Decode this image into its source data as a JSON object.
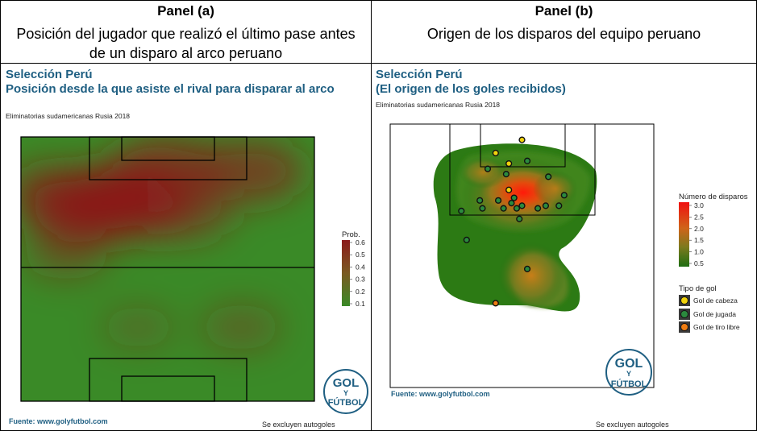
{
  "panel_a": {
    "header_label": "Panel (a)",
    "header_desc": "Posición del jugador que realizó el último pase antes de un disparo al arco peruano",
    "title_line1": "Selección Perú",
    "title_line2": "Posición desde la que asiste el rival para disparar al arco",
    "subtitle": "Eliminatorias sudamericanas Rusia 2018",
    "source": "Fuente: www.golyfutbol.com",
    "note": "Se excluyen autogoles"
  },
  "panel_b": {
    "header_label": "Panel (b)",
    "header_desc": "Origen de los disparos del equipo peruano",
    "title_line1": "Selección Perú",
    "title_line2": "(El origen de los goles recibidos)",
    "subtitle": "Eliminatorias sudamericanas Rusia 2018",
    "source": "Fuente: www.golyfutbol.com",
    "note": "Se excluyen autogoles"
  },
  "logo_text": {
    "top": "GOL",
    "middle": "Y",
    "bottom": "FÚTBOL"
  },
  "colors": {
    "title_blue": "#1f5f82",
    "pitch_green": "#3a8a27",
    "heat_red": "#8b1a1a",
    "density_dark": "#1e6e12",
    "density_red": "#f01010",
    "gol_cabeza": "#f1d30c",
    "gol_jugada": "#2b8a3e",
    "gol_tiro_libre": "#ef7d12"
  },
  "chart_data": [
    {
      "type": "heatmap",
      "legend_title": "Prob.",
      "legend_ticks": [
        "0.6",
        "0.5",
        "0.4",
        "0.3",
        "0.2",
        "0.1"
      ],
      "legend_range": [
        0.05,
        0.65
      ],
      "hotspots": [
        {
          "x": 0.35,
          "y": 0.24,
          "value": 0.62
        },
        {
          "x": 0.22,
          "y": 0.27,
          "value": 0.55
        },
        {
          "x": 0.5,
          "y": 0.12,
          "value": 0.45
        },
        {
          "x": 0.78,
          "y": 0.13,
          "value": 0.42
        },
        {
          "x": 0.55,
          "y": 0.28,
          "value": 0.35
        },
        {
          "x": 0.1,
          "y": 0.2,
          "value": 0.3
        },
        {
          "x": 0.15,
          "y": 0.45,
          "value": 0.2
        },
        {
          "x": 0.75,
          "y": 0.72,
          "value": 0.18
        },
        {
          "x": 0.4,
          "y": 0.72,
          "value": 0.12
        }
      ]
    },
    {
      "type": "scatter",
      "legend_density_title": "Número de disparos",
      "legend_density_ticks": [
        "3.0",
        "2.5",
        "2.0",
        "1.5",
        "1.0",
        "0.5"
      ],
      "legend_density_range": [
        0.5,
        3.0
      ],
      "legend_type_title": "Tipo de gol",
      "categories": [
        "Gol de cabeza",
        "Gol de jugada",
        "Gol de tiro libre"
      ],
      "shots": [
        {
          "x": 0.5,
          "y": 0.06,
          "type": "Gol de cabeza"
        },
        {
          "x": 0.4,
          "y": 0.11,
          "type": "Gol de cabeza"
        },
        {
          "x": 0.45,
          "y": 0.15,
          "type": "Gol de cabeza"
        },
        {
          "x": 0.45,
          "y": 0.25,
          "type": "Gol de cabeza"
        },
        {
          "x": 0.37,
          "y": 0.17,
          "type": "Gol de jugada"
        },
        {
          "x": 0.44,
          "y": 0.19,
          "type": "Gol de jugada"
        },
        {
          "x": 0.52,
          "y": 0.14,
          "type": "Gol de jugada"
        },
        {
          "x": 0.6,
          "y": 0.2,
          "type": "Gol de jugada"
        },
        {
          "x": 0.47,
          "y": 0.28,
          "type": "Gol de jugada"
        },
        {
          "x": 0.5,
          "y": 0.31,
          "type": "Gol de jugada"
        },
        {
          "x": 0.46,
          "y": 0.3,
          "type": "Gol de jugada"
        },
        {
          "x": 0.41,
          "y": 0.29,
          "type": "Gol de jugada"
        },
        {
          "x": 0.34,
          "y": 0.29,
          "type": "Gol de jugada"
        },
        {
          "x": 0.35,
          "y": 0.32,
          "type": "Gol de jugada"
        },
        {
          "x": 0.43,
          "y": 0.32,
          "type": "Gol de jugada"
        },
        {
          "x": 0.48,
          "y": 0.32,
          "type": "Gol de jugada"
        },
        {
          "x": 0.56,
          "y": 0.32,
          "type": "Gol de jugada"
        },
        {
          "x": 0.59,
          "y": 0.31,
          "type": "Gol de jugada"
        },
        {
          "x": 0.64,
          "y": 0.31,
          "type": "Gol de jugada"
        },
        {
          "x": 0.66,
          "y": 0.27,
          "type": "Gol de jugada"
        },
        {
          "x": 0.27,
          "y": 0.33,
          "type": "Gol de jugada"
        },
        {
          "x": 0.49,
          "y": 0.36,
          "type": "Gol de jugada"
        },
        {
          "x": 0.29,
          "y": 0.44,
          "type": "Gol de jugada"
        },
        {
          "x": 0.52,
          "y": 0.55,
          "type": "Gol de jugada"
        },
        {
          "x": 0.4,
          "y": 0.68,
          "type": "Gol de tiro libre"
        }
      ],
      "density_peaks": [
        {
          "x": 0.48,
          "y": 0.25,
          "value": 3.0
        },
        {
          "x": 0.52,
          "y": 0.55,
          "value": 1.8
        },
        {
          "x": 0.35,
          "y": 0.2,
          "value": 1.6
        },
        {
          "x": 0.62,
          "y": 0.27,
          "value": 1.5
        }
      ]
    }
  ]
}
